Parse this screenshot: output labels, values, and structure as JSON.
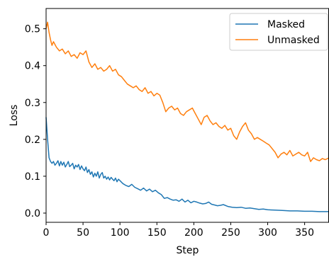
{
  "chart_data": {
    "type": "line",
    "xlabel": "Step",
    "ylabel": "Loss",
    "xlim": [
      0,
      383
    ],
    "ylim": [
      -0.025,
      0.555
    ],
    "xticks": [
      0,
      50,
      100,
      150,
      200,
      250,
      300,
      350
    ],
    "yticks": [
      0.0,
      0.1,
      0.2,
      0.3,
      0.4,
      0.5
    ],
    "ytick_labels": [
      "0.0",
      "0.1",
      "0.2",
      "0.3",
      "0.4",
      "0.5"
    ],
    "grid": false,
    "legend": {
      "position": "top-right"
    },
    "series": [
      {
        "name": "Masked",
        "color": "#1f77b4",
        "x": [
          0,
          2,
          4,
          6,
          8,
          10,
          12,
          14,
          16,
          18,
          20,
          22,
          24,
          26,
          28,
          30,
          32,
          34,
          36,
          38,
          40,
          42,
          44,
          46,
          48,
          50,
          52,
          54,
          56,
          58,
          60,
          62,
          64,
          66,
          68,
          70,
          72,
          74,
          76,
          78,
          80,
          82,
          84,
          86,
          88,
          90,
          92,
          94,
          96,
          98,
          100,
          104,
          108,
          112,
          116,
          120,
          124,
          128,
          132,
          136,
          140,
          144,
          148,
          152,
          156,
          160,
          164,
          168,
          172,
          176,
          180,
          184,
          188,
          192,
          196,
          200,
          204,
          208,
          212,
          216,
          220,
          224,
          228,
          232,
          236,
          240,
          246,
          252,
          258,
          264,
          270,
          276,
          282,
          288,
          294,
          300,
          310,
          320,
          330,
          340,
          350,
          360,
          370,
          383
        ],
        "values": [
          0.26,
          0.2,
          0.15,
          0.14,
          0.135,
          0.14,
          0.13,
          0.135,
          0.142,
          0.128,
          0.14,
          0.13,
          0.138,
          0.125,
          0.132,
          0.14,
          0.126,
          0.13,
          0.135,
          0.12,
          0.13,
          0.125,
          0.132,
          0.118,
          0.128,
          0.12,
          0.115,
          0.125,
          0.11,
          0.118,
          0.105,
          0.112,
          0.098,
          0.108,
          0.1,
          0.112,
          0.095,
          0.105,
          0.11,
          0.095,
          0.1,
          0.092,
          0.098,
          0.09,
          0.097,
          0.092,
          0.088,
          0.095,
          0.085,
          0.092,
          0.088,
          0.08,
          0.075,
          0.072,
          0.078,
          0.07,
          0.066,
          0.062,
          0.068,
          0.06,
          0.065,
          0.058,
          0.062,
          0.055,
          0.05,
          0.04,
          0.042,
          0.038,
          0.035,
          0.036,
          0.032,
          0.038,
          0.03,
          0.035,
          0.028,
          0.032,
          0.03,
          0.027,
          0.025,
          0.026,
          0.03,
          0.024,
          0.022,
          0.02,
          0.021,
          0.023,
          0.018,
          0.016,
          0.015,
          0.016,
          0.013,
          0.014,
          0.012,
          0.01,
          0.011,
          0.009,
          0.008,
          0.007,
          0.006,
          0.006,
          0.005,
          0.005,
          0.004,
          0.004
        ]
      },
      {
        "name": "Unmasked",
        "color": "#ff7f0e",
        "x": [
          0,
          2,
          4,
          6,
          8,
          10,
          14,
          18,
          22,
          26,
          30,
          34,
          38,
          42,
          46,
          50,
          54,
          58,
          62,
          66,
          70,
          74,
          78,
          82,
          86,
          90,
          94,
          98,
          102,
          106,
          110,
          114,
          118,
          122,
          126,
          130,
          134,
          138,
          142,
          146,
          150,
          154,
          158,
          162,
          166,
          170,
          174,
          178,
          182,
          186,
          190,
          194,
          198,
          202,
          206,
          210,
          214,
          218,
          222,
          226,
          230,
          234,
          238,
          242,
          246,
          250,
          254,
          258,
          262,
          266,
          270,
          274,
          278,
          282,
          286,
          290,
          294,
          298,
          302,
          306,
          310,
          314,
          318,
          322,
          326,
          330,
          334,
          338,
          342,
          346,
          350,
          354,
          358,
          362,
          366,
          370,
          374,
          378,
          383
        ],
        "values": [
          0.5,
          0.518,
          0.49,
          0.47,
          0.455,
          0.465,
          0.45,
          0.44,
          0.445,
          0.432,
          0.44,
          0.425,
          0.43,
          0.42,
          0.435,
          0.43,
          0.44,
          0.41,
          0.395,
          0.405,
          0.39,
          0.395,
          0.385,
          0.39,
          0.4,
          0.385,
          0.39,
          0.375,
          0.37,
          0.36,
          0.35,
          0.345,
          0.34,
          0.345,
          0.335,
          0.33,
          0.34,
          0.325,
          0.33,
          0.318,
          0.325,
          0.32,
          0.3,
          0.275,
          0.285,
          0.29,
          0.28,
          0.285,
          0.27,
          0.265,
          0.275,
          0.28,
          0.285,
          0.27,
          0.255,
          0.24,
          0.26,
          0.265,
          0.25,
          0.24,
          0.245,
          0.235,
          0.23,
          0.238,
          0.225,
          0.23,
          0.21,
          0.2,
          0.22,
          0.235,
          0.245,
          0.225,
          0.215,
          0.2,
          0.205,
          0.2,
          0.195,
          0.19,
          0.185,
          0.175,
          0.165,
          0.15,
          0.16,
          0.165,
          0.158,
          0.17,
          0.155,
          0.16,
          0.165,
          0.158,
          0.155,
          0.165,
          0.14,
          0.15,
          0.145,
          0.142,
          0.148,
          0.145,
          0.15
        ]
      }
    ]
  }
}
